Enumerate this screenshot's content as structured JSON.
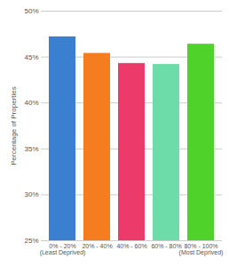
{
  "chart_data": {
    "type": "bar",
    "categories": [
      "0% - 20% (Least Deprived)",
      "20% - 40%",
      "40% - 60%",
      "60% - 80%",
      "80% - 100% (Most Deprived)"
    ],
    "values": [
      47.2,
      45.4,
      44.3,
      44.2,
      46.4
    ],
    "colors": [
      "#3b7fd0",
      "#f57c1f",
      "#ec3a6a",
      "#6edca9",
      "#4fd32b"
    ],
    "ylabel": "Percentage of Properties",
    "ylim": [
      25,
      50
    ],
    "yticks": [
      {
        "value": 25,
        "label": "25%"
      },
      {
        "value": 30,
        "label": "30%"
      },
      {
        "value": 35,
        "label": "35%"
      },
      {
        "value": 40,
        "label": "40%"
      },
      {
        "value": 45,
        "label": "45%"
      },
      {
        "value": 50,
        "label": "50%"
      }
    ],
    "grid": true
  }
}
